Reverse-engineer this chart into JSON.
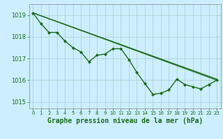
{
  "background_color": "#cceeff",
  "grid_color": "#aacccc",
  "line_color": "#1a6b1a",
  "marker_color": "#1a6b1a",
  "xlabel": "Graphe pression niveau de la mer (hPa)",
  "xlabel_fontsize": 7,
  "xlim": [
    -0.5,
    23.5
  ],
  "ylim": [
    1014.7,
    1019.5
  ],
  "yticks": [
    1015,
    1016,
    1017,
    1018,
    1019
  ],
  "xticks": [
    0,
    1,
    2,
    3,
    4,
    5,
    6,
    7,
    8,
    9,
    10,
    11,
    12,
    13,
    14,
    15,
    16,
    17,
    18,
    19,
    20,
    21,
    22,
    23
  ],
  "line1_x": [
    0,
    1,
    2,
    3,
    4,
    5,
    6,
    7,
    8,
    9,
    10,
    11,
    12,
    13,
    14,
    15,
    16,
    17,
    18,
    19,
    20,
    21,
    22,
    23
  ],
  "line1_y": [
    1019.1,
    1018.6,
    1018.2,
    1018.2,
    1017.8,
    1017.5,
    1017.3,
    1016.85,
    1017.15,
    1017.2,
    1017.45,
    1017.45,
    1016.95,
    1016.35,
    1015.85,
    1015.35,
    1015.4,
    1015.55,
    1016.05,
    1015.8,
    1015.7,
    1015.6,
    1015.8,
    1016.0
  ],
  "line2_x": [
    0,
    23
  ],
  "line2_y": [
    1019.1,
    1016.0
  ],
  "line3_x": [
    0,
    23
  ],
  "line3_y": [
    1019.1,
    1016.05
  ]
}
